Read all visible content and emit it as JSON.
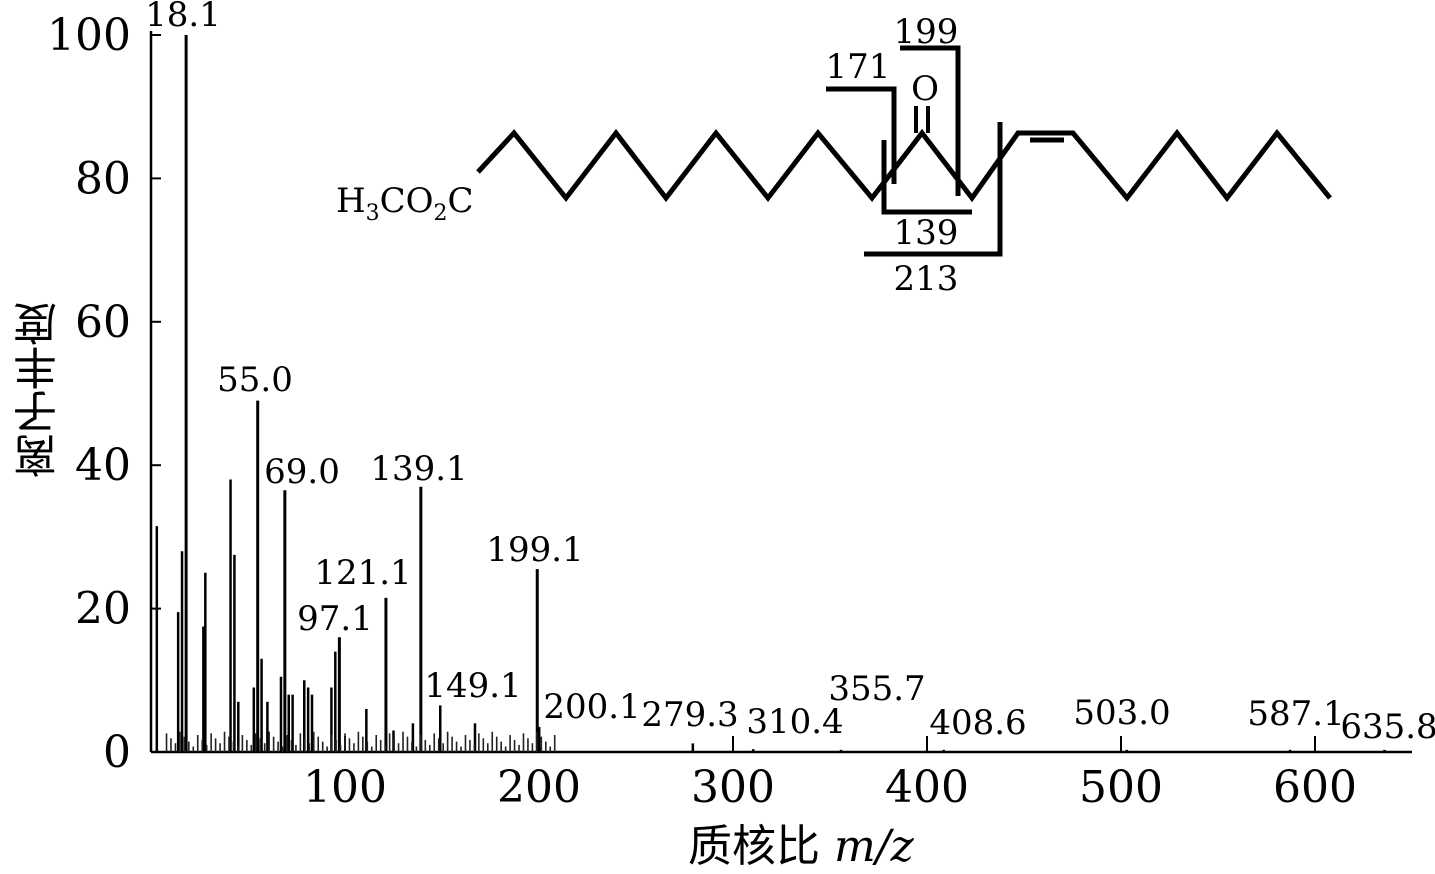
{
  "chart_data": {
    "type": "bar",
    "xlabel": "质核比",
    "xlabel_unit": "m/z",
    "ylabel": "离子丰度",
    "xlim": [
      0,
      650
    ],
    "ylim": [
      0,
      100
    ],
    "xticks": [
      100,
      200,
      300,
      400,
      500,
      600
    ],
    "yticks": [
      0,
      20,
      40,
      60,
      80,
      100
    ],
    "grid": false,
    "peaks": [
      {
        "mz": 3,
        "value": 31.5
      },
      {
        "mz": 14,
        "value": 19.5
      },
      {
        "mz": 16,
        "value": 28
      },
      {
        "mz": 18.1,
        "value": 100,
        "label": "18.1"
      },
      {
        "mz": 27,
        "value": 17.5
      },
      {
        "mz": 28,
        "value": 25
      },
      {
        "mz": 41,
        "value": 38
      },
      {
        "mz": 43,
        "value": 27.5
      },
      {
        "mz": 45,
        "value": 7
      },
      {
        "mz": 53,
        "value": 9
      },
      {
        "mz": 55.0,
        "value": 49,
        "label": "55.0"
      },
      {
        "mz": 57,
        "value": 13
      },
      {
        "mz": 60,
        "value": 7
      },
      {
        "mz": 67,
        "value": 10.5
      },
      {
        "mz": 69.0,
        "value": 36.5,
        "label": "69.0"
      },
      {
        "mz": 71,
        "value": 8
      },
      {
        "mz": 73,
        "value": 8
      },
      {
        "mz": 79,
        "value": 10
      },
      {
        "mz": 81,
        "value": 9
      },
      {
        "mz": 83,
        "value": 8
      },
      {
        "mz": 93,
        "value": 9
      },
      {
        "mz": 95,
        "value": 14
      },
      {
        "mz": 97.1,
        "value": 16,
        "label": "97.1"
      },
      {
        "mz": 111,
        "value": 6
      },
      {
        "mz": 121.1,
        "value": 21.5,
        "label": "121.1"
      },
      {
        "mz": 125,
        "value": 3
      },
      {
        "mz": 135,
        "value": 4
      },
      {
        "mz": 139.1,
        "value": 37,
        "label": "139.1"
      },
      {
        "mz": 149.1,
        "value": 6.5,
        "label": "149.1"
      },
      {
        "mz": 167,
        "value": 4
      },
      {
        "mz": 199.1,
        "value": 25.5,
        "label": "199.1"
      },
      {
        "mz": 200.1,
        "value": 3.5,
        "label": "200.1"
      },
      {
        "mz": 279.3,
        "value": 1.2,
        "label": "279.3"
      },
      {
        "mz": 310.4,
        "value": 0.4,
        "label": "310.4"
      },
      {
        "mz": 355.7,
        "value": 0.3,
        "label": "355.7"
      },
      {
        "mz": 408.6,
        "value": 0.3,
        "label": "408.6"
      },
      {
        "mz": 503.0,
        "value": 0.3,
        "label": "503.0"
      },
      {
        "mz": 587.1,
        "value": 0.3,
        "label": "587.1"
      },
      {
        "mz": 635.8,
        "value": 0.3,
        "label": "635.8"
      }
    ],
    "structure": {
      "formula_prefix": "H",
      "formula_sub1": "3",
      "formula_mid": "CO",
      "formula_sub2": "2",
      "formula_suffix": "C",
      "oxygen": "O",
      "fragments": [
        "171",
        "199",
        "139",
        "213"
      ]
    }
  }
}
